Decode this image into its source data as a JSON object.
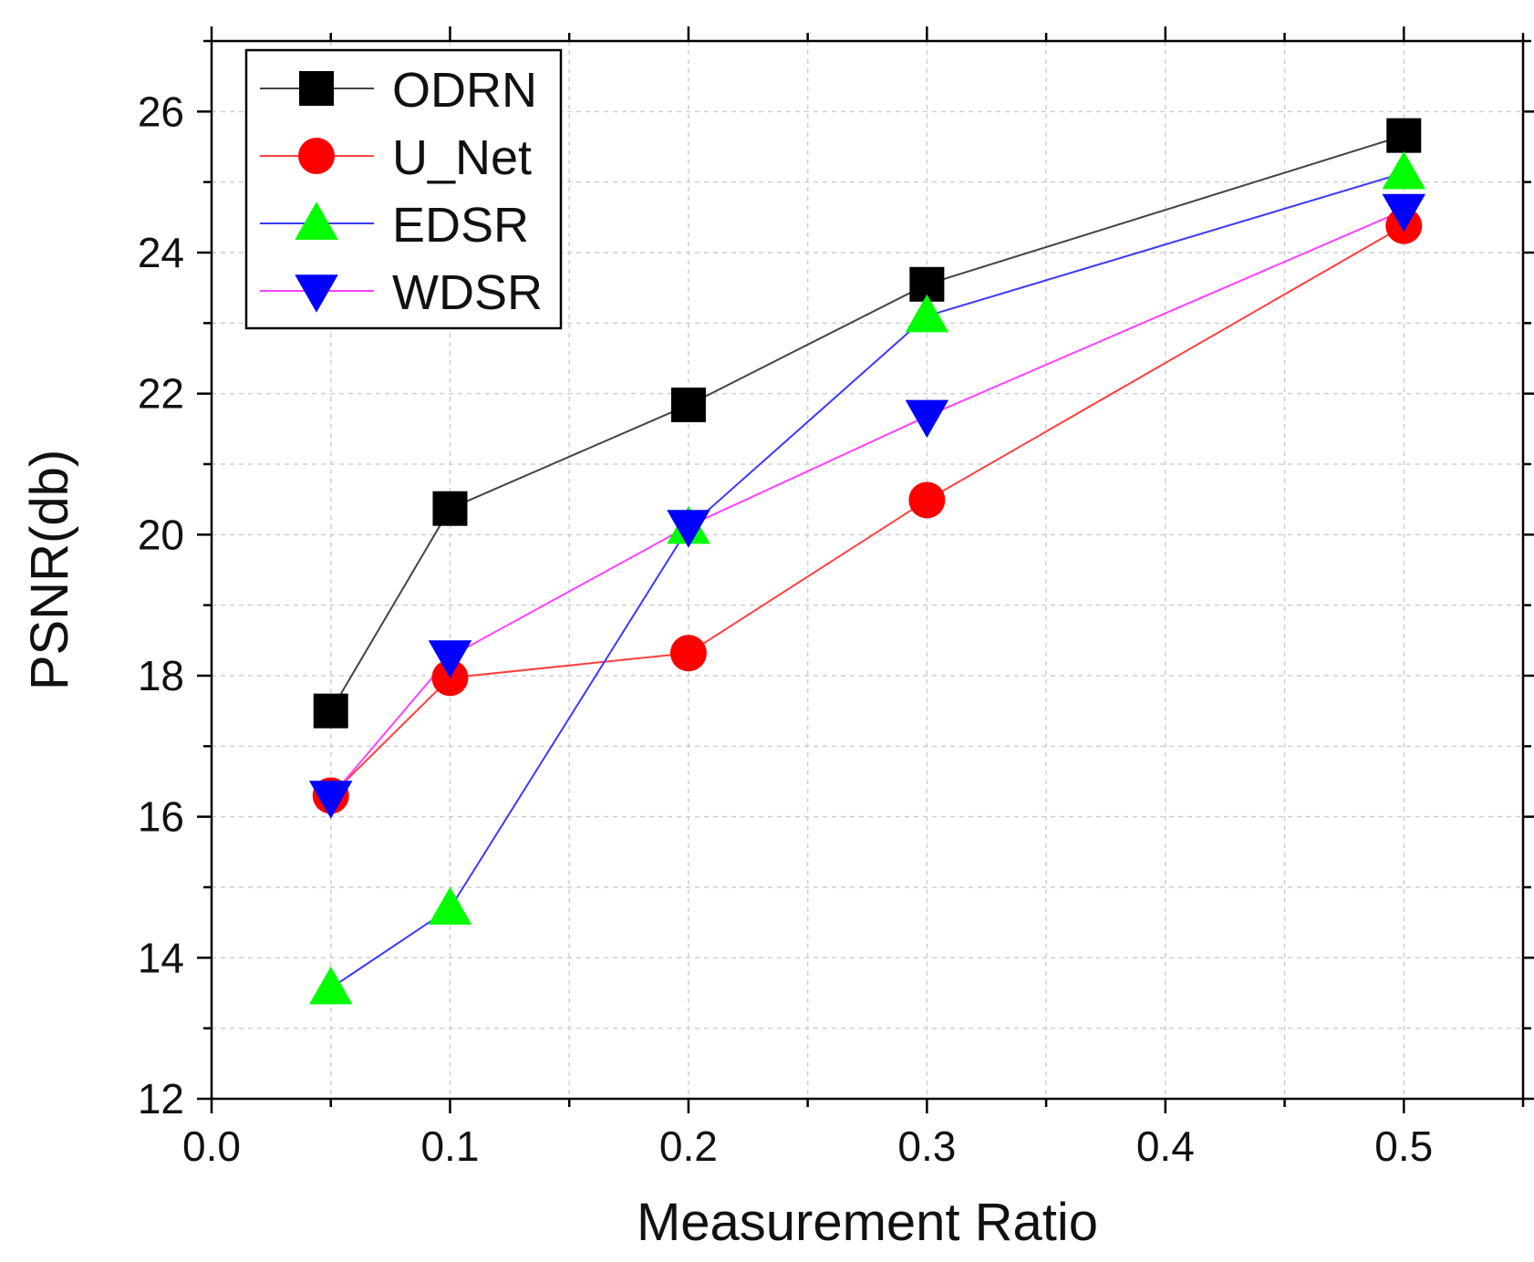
{
  "chart_data": {
    "type": "line",
    "title": "",
    "xlabel": "Measurement Ratio",
    "ylabel": "PSNR(db)",
    "xlim": [
      0.0,
      0.55
    ],
    "ylim": [
      12,
      27
    ],
    "x_ticks": [
      "0.0",
      "0.1",
      "0.2",
      "0.3",
      "0.4",
      "0.5"
    ],
    "y_ticks": [
      "12",
      "14",
      "16",
      "18",
      "20",
      "22",
      "24",
      "26"
    ],
    "grid": true,
    "legend_position": "top-left",
    "x": [
      0.05,
      0.1,
      0.2,
      0.3,
      0.5
    ],
    "series": [
      {
        "name": "ODRN",
        "marker": "square",
        "line_color": "#444444",
        "marker_color": "#000000",
        "values": [
          17.5,
          20.37,
          21.84,
          23.55,
          25.66
        ]
      },
      {
        "name": "U_Net",
        "marker": "circle",
        "line_color": "#ff4040",
        "marker_color": "#ff0000",
        "values": [
          16.3,
          17.97,
          18.32,
          20.49,
          24.38
        ]
      },
      {
        "name": "EDSR",
        "marker": "triangle-up",
        "line_color": "#3a3aff",
        "marker_color": "#00ff00",
        "values": [
          13.57,
          14.7,
          20.1,
          23.1,
          25.13
        ]
      },
      {
        "name": "WDSR",
        "marker": "triangle-down",
        "line_color": "#ff40ff",
        "marker_color": "#0000ff",
        "values": [
          16.28,
          18.27,
          20.12,
          21.68,
          24.6
        ]
      }
    ]
  }
}
